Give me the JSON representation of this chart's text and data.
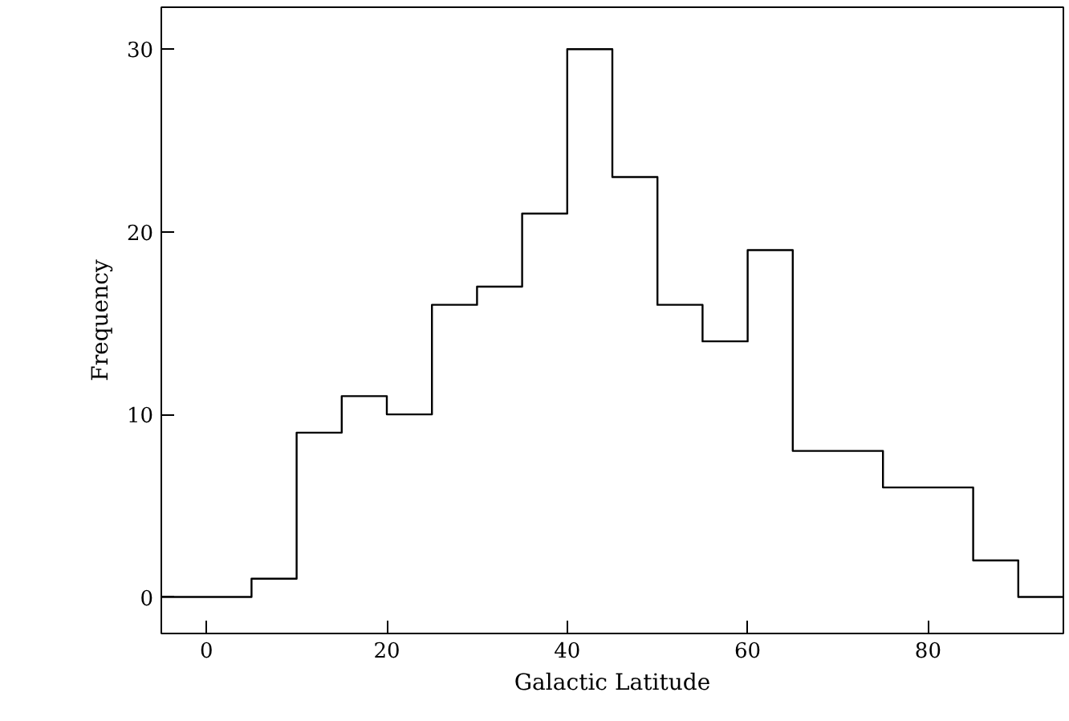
{
  "chart_data": {
    "type": "histogram",
    "xlabel": "Galactic Latitude",
    "ylabel": "Frequency",
    "bins": [
      -5,
      0,
      5,
      10,
      15,
      20,
      25,
      30,
      35,
      40,
      45,
      50,
      55,
      60,
      65,
      70,
      75,
      80,
      85,
      90,
      95
    ],
    "values": [
      0,
      0,
      1,
      9,
      11,
      10,
      16,
      17,
      21,
      30,
      23,
      16,
      14,
      19,
      8,
      8,
      6,
      6,
      2,
      0
    ],
    "color": "#000000",
    "xlim": [
      -5,
      95
    ],
    "ylim": [
      -2,
      32.3
    ],
    "xticks": [
      0,
      20,
      40,
      60,
      80
    ],
    "yticks": [
      0,
      10,
      20,
      30
    ],
    "grid": false
  }
}
